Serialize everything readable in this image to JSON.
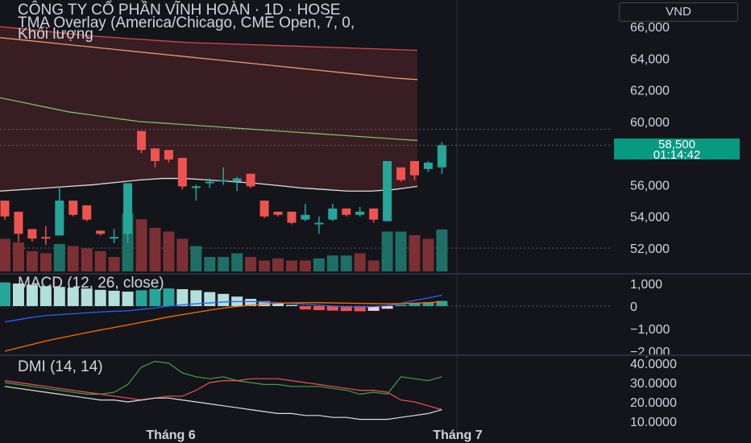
{
  "header": {
    "title": "CÔNG TY CỔ PHẦN VĨNH HOÀN · 1D · HOSE",
    "overlay": "TMA Overlay (America/Chicago, CME Open, 7, 0,",
    "volume_label": "Khối lượng",
    "currency_button": "VND"
  },
  "price_badge": {
    "price": "58,500",
    "countdown": "01:14:42"
  },
  "colors": {
    "up": "#26a69a",
    "down": "#ef5350",
    "up_vol": "#1e6f66",
    "down_vol": "#7c3034",
    "band_fill": "#3d1e24",
    "ma_top": "#d24b4b",
    "ma_mid": "#e8a070",
    "ma_low": "#7cbf6a",
    "ma_bottom": "#e0e0e0",
    "badge": "#089981"
  },
  "chart_data": [
    {
      "type": "candlestick",
      "title": "CÔNG TY CỔ PHẦN VĨNH HOÀN · 1D · HOSE",
      "y_ticks": [
        52000,
        54000,
        56000,
        58000,
        60000,
        62000,
        64000,
        66000
      ],
      "y_tick_labels": [
        "52,000",
        "54,000",
        "56,000",
        "58,000",
        "60,000",
        "62,000",
        "64,000",
        "66,000"
      ],
      "ylim": [
        51500,
        66200
      ],
      "last_price": 58500,
      "dotted_levels": [
        59500,
        58500,
        52000
      ],
      "candles": [
        {
          "o": 55000,
          "h": 55000,
          "l": 53800,
          "c": 54000
        },
        {
          "o": 54300,
          "h": 54300,
          "l": 52400,
          "c": 52900
        },
        {
          "o": 53200,
          "h": 53200,
          "l": 52400,
          "c": 52600
        },
        {
          "o": 52700,
          "h": 53400,
          "l": 52200,
          "c": 52600
        },
        {
          "o": 52800,
          "h": 55900,
          "l": 52800,
          "c": 55000
        },
        {
          "o": 55000,
          "h": 55000,
          "l": 54000,
          "c": 54100
        },
        {
          "o": 54700,
          "h": 54700,
          "l": 53700,
          "c": 53800
        },
        {
          "o": 53100,
          "h": 53100,
          "l": 52800,
          "c": 52900
        },
        {
          "o": 52600,
          "h": 53200,
          "l": 52300,
          "c": 52700
        },
        {
          "o": 52900,
          "h": 56100,
          "l": 52300,
          "c": 56100
        },
        {
          "o": 59400,
          "h": 59400,
          "l": 58000,
          "c": 58200
        },
        {
          "o": 58300,
          "h": 58300,
          "l": 57100,
          "c": 57500
        },
        {
          "o": 58200,
          "h": 58200,
          "l": 57400,
          "c": 57600
        },
        {
          "o": 57700,
          "h": 57700,
          "l": 55700,
          "c": 55900
        },
        {
          "o": 55800,
          "h": 56000,
          "l": 55000,
          "c": 55900
        },
        {
          "o": 56100,
          "h": 56400,
          "l": 55800,
          "c": 56200
        },
        {
          "o": 56200,
          "h": 57100,
          "l": 56000,
          "c": 56300
        },
        {
          "o": 56200,
          "h": 56500,
          "l": 55600,
          "c": 56400
        },
        {
          "o": 56700,
          "h": 56700,
          "l": 55800,
          "c": 55900
        },
        {
          "o": 55000,
          "h": 55000,
          "l": 53900,
          "c": 54000
        },
        {
          "o": 54300,
          "h": 54300,
          "l": 54000,
          "c": 54100
        },
        {
          "o": 54300,
          "h": 54300,
          "l": 53500,
          "c": 53600
        },
        {
          "o": 53800,
          "h": 54800,
          "l": 53700,
          "c": 54100
        },
        {
          "o": 53500,
          "h": 54000,
          "l": 52900,
          "c": 53600
        },
        {
          "o": 53800,
          "h": 54800,
          "l": 53700,
          "c": 54500
        },
        {
          "o": 54500,
          "h": 54500,
          "l": 54000,
          "c": 54100
        },
        {
          "o": 54100,
          "h": 54600,
          "l": 54000,
          "c": 54300
        },
        {
          "o": 54500,
          "h": 54500,
          "l": 53600,
          "c": 53800
        },
        {
          "o": 53700,
          "h": 57500,
          "l": 53700,
          "c": 57500
        },
        {
          "o": 57100,
          "h": 57100,
          "l": 56200,
          "c": 56300
        },
        {
          "o": 57500,
          "h": 57500,
          "l": 56300,
          "c": 56600
        },
        {
          "o": 57000,
          "h": 57500,
          "l": 56800,
          "c": 57400
        },
        {
          "o": 57100,
          "h": 58700,
          "l": 56700,
          "c": 58500
        }
      ],
      "ma_top": [
        66000,
        65850,
        65700,
        65550,
        65400,
        65300,
        65200,
        65100,
        65000,
        64950,
        64900,
        64850,
        64800,
        64750,
        64700,
        64650,
        64600,
        64550,
        64500
      ],
      "ma_mid": [
        65300,
        65150,
        65000,
        64850,
        64700,
        64550,
        64400,
        64250,
        64100,
        63950,
        63800,
        63650,
        63500,
        63350,
        63200,
        63050,
        62900,
        62750,
        62650
      ],
      "ma_low": [
        61500,
        61200,
        60900,
        60600,
        60400,
        60200,
        60000,
        59900,
        59800,
        59700,
        59600,
        59500,
        59400,
        59300,
        59200,
        59100,
        59000,
        58900,
        58800
      ],
      "ma_bottom": [
        55600,
        55700,
        55800,
        55900,
        56000,
        56150,
        56300,
        56400,
        56400,
        56300,
        56200,
        56100,
        55950,
        55800,
        55700,
        55600,
        55600,
        55700,
        55900
      ]
    },
    {
      "type": "bar",
      "title": "Khối lượng",
      "values": [
        45,
        40,
        28,
        25,
        38,
        35,
        32,
        28,
        20,
        80,
        72,
        60,
        55,
        45,
        35,
        20,
        20,
        25,
        20,
        15,
        18,
        15,
        15,
        18,
        22,
        22,
        25,
        15,
        55,
        55,
        50,
        45,
        58
      ],
      "directions": [
        "d",
        "d",
        "d",
        "d",
        "u",
        "d",
        "d",
        "d",
        "d",
        "u",
        "d",
        "d",
        "d",
        "d",
        "u",
        "u",
        "u",
        "u",
        "d",
        "d",
        "d",
        "d",
        "d",
        "u",
        "u",
        "u",
        "d",
        "d",
        "u",
        "u",
        "d",
        "d",
        "u"
      ]
    },
    {
      "type": "line",
      "title": "MACD (12, 26, close)",
      "y_ticks": [
        1000,
        0,
        -1000,
        -2000
      ],
      "y_tick_labels": [
        "1,000",
        "0",
        "−1,000",
        "−2,000"
      ],
      "ylim": [
        -2200,
        1350
      ],
      "histogram": [
        1050,
        1000,
        950,
        880,
        850,
        820,
        780,
        720,
        680,
        640,
        700,
        760,
        780,
        750,
        700,
        620,
        540,
        420,
        320,
        220,
        120,
        50,
        -150,
        -180,
        -200,
        -220,
        -230,
        -210,
        -120,
        60,
        120,
        170,
        230
      ],
      "macd": [
        -700,
        -600,
        -500,
        -420,
        -380,
        -340,
        -300,
        -260,
        -230,
        -210,
        -150,
        -80,
        0,
        60,
        100,
        140,
        180,
        200,
        200,
        180,
        150,
        120,
        80,
        40,
        0,
        -30,
        -40,
        -20,
        20,
        120,
        250,
        360,
        480
      ],
      "signal": [
        -2000,
        -1850,
        -1700,
        -1550,
        -1420,
        -1300,
        -1180,
        -1060,
        -950,
        -840,
        -720,
        -600,
        -480,
        -380,
        -280,
        -180,
        -90,
        -20,
        40,
        90,
        120,
        140,
        150,
        150,
        140,
        130,
        120,
        110,
        100,
        110,
        130,
        150,
        190
      ]
    },
    {
      "type": "line",
      "title": "DMI (14, 14)",
      "y_ticks": [
        40,
        30,
        20,
        10
      ],
      "y_tick_labels": [
        "40.0000",
        "30.0000",
        "20.0000",
        "10.0000"
      ],
      "ylim": [
        9,
        43
      ],
      "plus_di": [
        30,
        29,
        28,
        27,
        26,
        25,
        24,
        24,
        25,
        29,
        38,
        41,
        40,
        35,
        33,
        32,
        33,
        31,
        30,
        29,
        29,
        28,
        28,
        28,
        27,
        26,
        24,
        25,
        24,
        33,
        32,
        31,
        33
      ],
      "minus_di": [
        31,
        30,
        29,
        28,
        27,
        26,
        25,
        24,
        23,
        22,
        21,
        22,
        23,
        23,
        26,
        30,
        31,
        31,
        32,
        32,
        32,
        31,
        30,
        29,
        28,
        27,
        26,
        26,
        25,
        21,
        20,
        18,
        16
      ],
      "adx": [
        28,
        27,
        26,
        25,
        24,
        23,
        22,
        21,
        21,
        20,
        21,
        22,
        22,
        21,
        20,
        19,
        18,
        17,
        16,
        15,
        14,
        14,
        13,
        13,
        12,
        12,
        11,
        11,
        11,
        12,
        13,
        14,
        16
      ]
    }
  ],
  "x_axis": {
    "labels": [
      "Tháng 6",
      "Tháng 7"
    ]
  }
}
